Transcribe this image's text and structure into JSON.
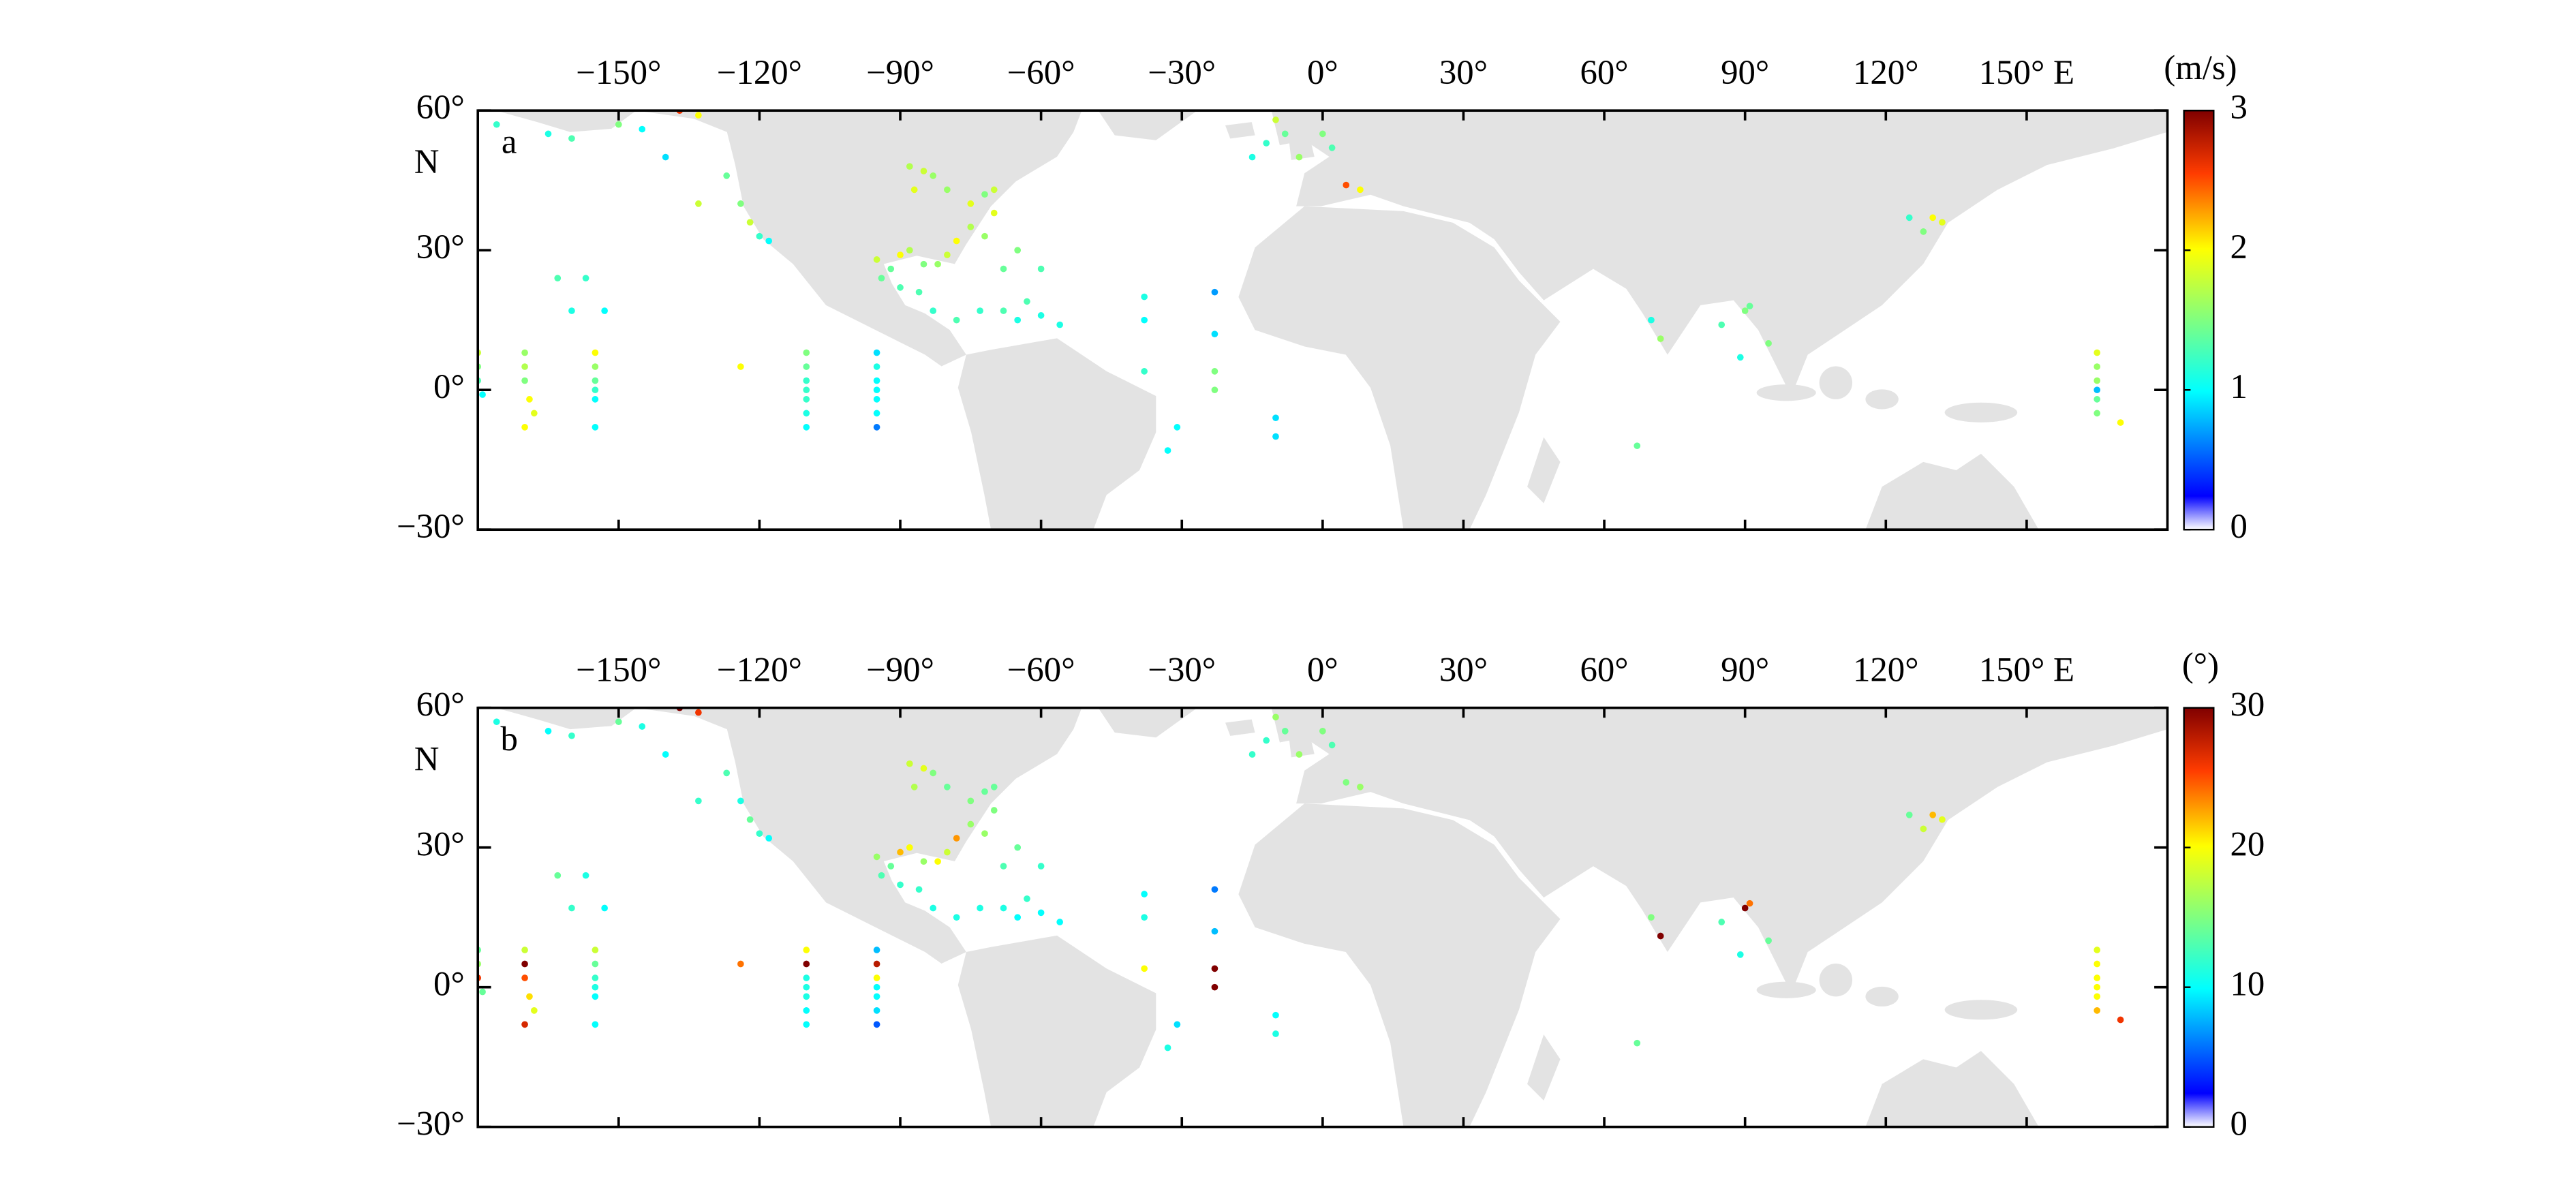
{
  "chart_data": [
    {
      "type": "scatter",
      "panel_label": "a",
      "y_hemisphere_label": "N",
      "x": [
        -180,
        -180,
        -180,
        -179,
        -170,
        -170,
        -170,
        -169,
        -168,
        -170,
        -155,
        -155,
        -155,
        -155,
        -155,
        -155,
        -110,
        -110,
        -110,
        -110,
        -110,
        -110,
        -110,
        -95,
        -95,
        -95,
        -95,
        -95,
        -95,
        -95,
        -38,
        -38,
        -38,
        -31,
        -33,
        -23,
        -23,
        -23,
        -23,
        -10,
        -10,
        67,
        70,
        72,
        85,
        90,
        91,
        89,
        95,
        165,
        165,
        165,
        165,
        165,
        165,
        170,
        130,
        132,
        128,
        125,
        -10,
        -8,
        -12,
        -5,
        0,
        -15,
        2,
        5,
        8,
        -176,
        -165,
        -160,
        -150,
        -145,
        -140,
        -137,
        -133,
        -133,
        -127,
        -124,
        -122,
        -120,
        -118,
        -163,
        -157,
        -160,
        -153,
        -124,
        -88,
        -85,
        -83,
        -87,
        -80,
        -75,
        -72,
        -70,
        -70,
        -75,
        -78,
        -80,
        -82,
        -72,
        -65,
        -68,
        -60,
        -95,
        -90,
        -88,
        -85,
        -92,
        -94,
        -90,
        -86,
        -83,
        -78,
        -73,
        -68,
        -65,
        -63,
        -60,
        -56
      ],
      "y": [
        8,
        5,
        2,
        -1,
        8,
        5,
        2,
        -2,
        -5,
        -8,
        8,
        5,
        2,
        0,
        -2,
        -8,
        8,
        5,
        2,
        0,
        -2,
        -5,
        -8,
        8,
        5,
        2,
        0,
        -2,
        -5,
        -8,
        20,
        15,
        4,
        -8,
        -13,
        21,
        12,
        4,
        0,
        -6,
        -10,
        -12,
        15,
        11,
        14,
        17,
        18,
        7,
        10,
        8,
        5,
        2,
        0,
        -2,
        -5,
        -7,
        37,
        36,
        34,
        37,
        58,
        55,
        53,
        50,
        55,
        50,
        52,
        44,
        43,
        57,
        55,
        54,
        57,
        56,
        50,
        60,
        59,
        40,
        46,
        40,
        36,
        33,
        32,
        24,
        24,
        17,
        17,
        5,
        48,
        47,
        46,
        43,
        43,
        40,
        42,
        43,
        38,
        35,
        32,
        29,
        27,
        33,
        30,
        26,
        26,
        28,
        29,
        30,
        27,
        26,
        24,
        22,
        21,
        17,
        15,
        17,
        17,
        15,
        19,
        16,
        14
      ],
      "values": [
        1.8,
        1.5,
        1.3,
        1.0,
        1.6,
        1.7,
        1.5,
        2.0,
        1.9,
        2.0,
        2.0,
        1.6,
        1.4,
        1.2,
        1.0,
        1.0,
        1.5,
        1.4,
        1.2,
        1.2,
        1.2,
        1.1,
        1.0,
        0.9,
        1.1,
        1.0,
        1.0,
        1.0,
        1.0,
        0.6,
        1.1,
        1.0,
        1.2,
        1.0,
        1.0,
        0.7,
        0.9,
        1.5,
        1.5,
        0.9,
        0.9,
        1.4,
        1.1,
        1.6,
        1.3,
        1.5,
        1.4,
        1.1,
        1.5,
        1.9,
        1.6,
        1.6,
        0.8,
        1.4,
        1.5,
        2.0,
        2.0,
        1.9,
        1.5,
        1.2,
        1.8,
        1.4,
        1.2,
        1.6,
        1.5,
        1.1,
        1.3,
        2.5,
        2.0,
        1.2,
        1.1,
        1.3,
        1.5,
        1.0,
        0.9,
        2.6,
        2.0,
        1.8,
        1.4,
        1.5,
        1.8,
        1.2,
        1.0,
        1.3,
        1.2,
        1.1,
        1.0,
        2.0,
        1.7,
        1.8,
        1.6,
        1.9,
        1.6,
        1.9,
        1.5,
        1.8,
        1.9,
        1.7,
        2.0,
        1.8,
        1.6,
        1.6,
        1.5,
        1.4,
        1.3,
        1.8,
        2.0,
        1.7,
        1.5,
        1.4,
        1.4,
        1.3,
        1.3,
        1.2,
        1.3,
        1.2,
        1.3,
        1.1,
        1.3,
        1.1,
        1.1
      ],
      "xlim": [
        -180,
        180
      ],
      "ylim": [
        -30,
        60
      ],
      "xticks": [
        {
          "value": -150,
          "label": "−150°"
        },
        {
          "value": -120,
          "label": "−120°"
        },
        {
          "value": -90,
          "label": "−90°"
        },
        {
          "value": -60,
          "label": "−60°"
        },
        {
          "value": -30,
          "label": "−30°"
        },
        {
          "value": 0,
          "label": "0°"
        },
        {
          "value": 30,
          "label": "30°"
        },
        {
          "value": 60,
          "label": "60°"
        },
        {
          "value": 90,
          "label": "90°"
        },
        {
          "value": 120,
          "label": "120°"
        },
        {
          "value": 150,
          "label": "150° E"
        }
      ],
      "yticks": [
        {
          "value": 60,
          "label": "60°"
        },
        {
          "value": 30,
          "label": "30°"
        },
        {
          "value": 0,
          "label": "0°"
        },
        {
          "value": -30,
          "label": "−30°"
        }
      ],
      "colorbar": {
        "label": "(m/s)",
        "colormap": "jet",
        "clim": [
          0,
          3
        ],
        "ticks": [
          0,
          1,
          2,
          3
        ]
      }
    },
    {
      "type": "scatter",
      "panel_label": "b",
      "y_hemisphere_label": "N",
      "x": [
        -180,
        -180,
        -180,
        -179,
        -170,
        -170,
        -170,
        -169,
        -168,
        -170,
        -155,
        -155,
        -155,
        -155,
        -155,
        -155,
        -110,
        -110,
        -110,
        -110,
        -110,
        -110,
        -110,
        -95,
        -95,
        -95,
        -95,
        -95,
        -95,
        -95,
        -38,
        -38,
        -38,
        -31,
        -33,
        -23,
        -23,
        -23,
        -23,
        -10,
        -10,
        67,
        70,
        72,
        85,
        90,
        91,
        89,
        95,
        165,
        165,
        165,
        165,
        165,
        165,
        170,
        130,
        132,
        128,
        125,
        -10,
        -8,
        -12,
        -5,
        0,
        -15,
        2,
        5,
        8,
        -176,
        -165,
        -160,
        -150,
        -145,
        -140,
        -137,
        -133,
        -133,
        -127,
        -124,
        -122,
        -120,
        -118,
        -163,
        -157,
        -160,
        -153,
        -124,
        -88,
        -85,
        -83,
        -87,
        -80,
        -75,
        -72,
        -70,
        -70,
        -75,
        -78,
        -80,
        -82,
        -72,
        -65,
        -68,
        -60,
        -95,
        -90,
        -88,
        -85,
        -92,
        -94,
        -90,
        -86,
        -83,
        -78,
        -73,
        -68,
        -65,
        -63,
        -60,
        -56
      ],
      "y": [
        8,
        5,
        2,
        -1,
        8,
        5,
        2,
        -2,
        -5,
        -8,
        8,
        5,
        2,
        0,
        -2,
        -8,
        8,
        5,
        2,
        0,
        -2,
        -5,
        -8,
        8,
        5,
        2,
        0,
        -2,
        -5,
        -8,
        20,
        15,
        4,
        -8,
        -13,
        21,
        12,
        4,
        0,
        -6,
        -10,
        -12,
        15,
        11,
        14,
        17,
        18,
        7,
        10,
        8,
        5,
        2,
        0,
        -2,
        -5,
        -7,
        37,
        36,
        34,
        37,
        58,
        55,
        53,
        50,
        55,
        50,
        52,
        44,
        43,
        57,
        55,
        54,
        57,
        56,
        50,
        60,
        59,
        40,
        46,
        40,
        36,
        33,
        32,
        24,
        24,
        17,
        17,
        5,
        48,
        47,
        46,
        43,
        43,
        40,
        42,
        43,
        38,
        35,
        32,
        29,
        27,
        33,
        30,
        26,
        26,
        28,
        29,
        30,
        27,
        26,
        24,
        22,
        21,
        17,
        15,
        17,
        17,
        15,
        19,
        16,
        14
      ],
      "values": [
        14,
        16,
        26,
        14,
        18,
        30,
        25,
        21,
        19,
        27,
        18,
        14,
        12,
        11,
        10,
        10,
        20,
        30,
        11,
        11,
        11,
        10,
        10,
        8,
        28,
        20,
        10,
        10,
        9,
        5,
        10,
        11,
        20,
        9,
        11,
        6,
        8,
        30,
        30,
        10,
        11,
        14,
        15,
        30,
        13,
        30,
        24,
        11,
        14,
        19,
        20,
        20,
        20,
        20,
        22,
        26,
        22,
        19,
        18,
        14,
        16,
        14,
        12,
        16,
        15,
        12,
        13,
        15,
        16,
        11,
        10,
        12,
        14,
        11,
        10,
        30,
        26,
        12,
        13,
        11,
        14,
        12,
        10,
        14,
        11,
        12,
        10,
        24,
        18,
        19,
        15,
        17,
        14,
        15,
        14,
        14,
        15,
        16,
        23,
        18,
        20,
        16,
        14,
        13,
        12,
        16,
        22,
        20,
        16,
        14,
        13,
        12,
        12,
        11,
        11,
        11,
        11,
        10,
        12,
        10,
        10
      ],
      "xlim": [
        -180,
        180
      ],
      "ylim": [
        -30,
        60
      ],
      "xticks": [
        {
          "value": -150,
          "label": "−150°"
        },
        {
          "value": -120,
          "label": "−120°"
        },
        {
          "value": -90,
          "label": "−90°"
        },
        {
          "value": -60,
          "label": "−60°"
        },
        {
          "value": -30,
          "label": "−30°"
        },
        {
          "value": 0,
          "label": "0°"
        },
        {
          "value": 30,
          "label": "30°"
        },
        {
          "value": 60,
          "label": "60°"
        },
        {
          "value": 90,
          "label": "90°"
        },
        {
          "value": 120,
          "label": "120°"
        },
        {
          "value": 150,
          "label": "150° E"
        }
      ],
      "yticks": [
        {
          "value": 60,
          "label": "60°"
        },
        {
          "value": 30,
          "label": "30°"
        },
        {
          "value": 0,
          "label": "0°"
        },
        {
          "value": -30,
          "label": "−30°"
        }
      ],
      "colorbar": {
        "label": "(°)",
        "colormap": "jet",
        "clim": [
          0,
          30
        ],
        "ticks": [
          0,
          10,
          20,
          30
        ]
      }
    }
  ]
}
